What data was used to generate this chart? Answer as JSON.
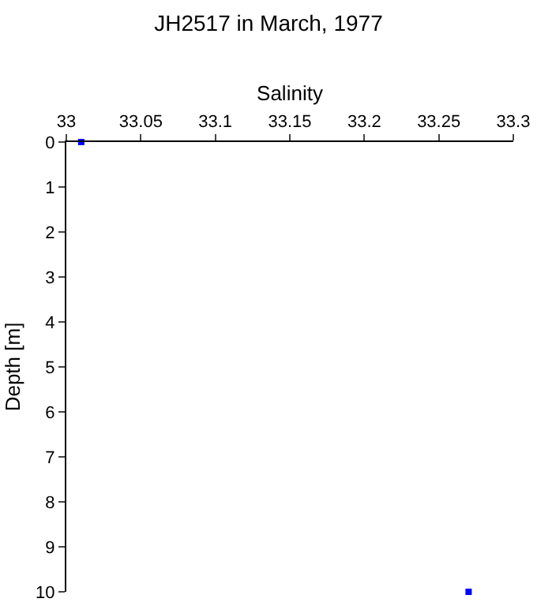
{
  "chart_data": {
    "type": "scatter",
    "title": "JH2517 in March, 1977",
    "xlabel": "Salinity",
    "ylabel": "Depth [m]",
    "x": [
      33.01,
      33.27
    ],
    "values": [
      0,
      10
    ],
    "color": "#0000ff",
    "marker": "square",
    "xlim": [
      33,
      33.3
    ],
    "xticks": [
      33,
      33.05,
      33.1,
      33.15,
      33.2,
      33.25,
      33.3
    ],
    "ylim": [
      10,
      0
    ],
    "yticks": [
      0,
      1,
      2,
      3,
      4,
      5,
      6,
      7,
      8,
      9,
      10
    ]
  }
}
